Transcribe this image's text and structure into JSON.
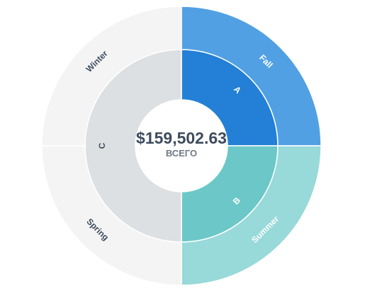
{
  "chart_data": {
    "type": "sunburst",
    "center": {
      "value": "$159,502.63",
      "caption": "ВСЕГО"
    },
    "inner_ring": [
      {
        "label": "A",
        "value": 39875.66,
        "color": "#2380d6",
        "label_color": "#ffffff"
      },
      {
        "label": "B",
        "value": 39875.66,
        "color": "#6cc8c8",
        "label_color": "#ffffff"
      },
      {
        "label": "C",
        "value": 79751.31,
        "color": "#dde0e2",
        "label_color": "#3e4c5e"
      }
    ],
    "outer_ring": [
      {
        "label": "Fall",
        "parent": "A",
        "value": 39875.66,
        "color": "#51a0e3",
        "label_color": "#ffffff"
      },
      {
        "label": "Summer",
        "parent": "B",
        "value": 39875.66,
        "color": "#98d9d9",
        "label_color": "#ffffff"
      },
      {
        "label": "Spring",
        "parent": "C",
        "value": 39875.66,
        "color": "#f4f4f4",
        "label_color": "#3e4c5e"
      },
      {
        "label": "Winter",
        "parent": "C",
        "value": 39875.65,
        "color": "#f4f4f4",
        "label_color": "#3e4c5e"
      }
    ],
    "legend": "none",
    "grid": false
  }
}
